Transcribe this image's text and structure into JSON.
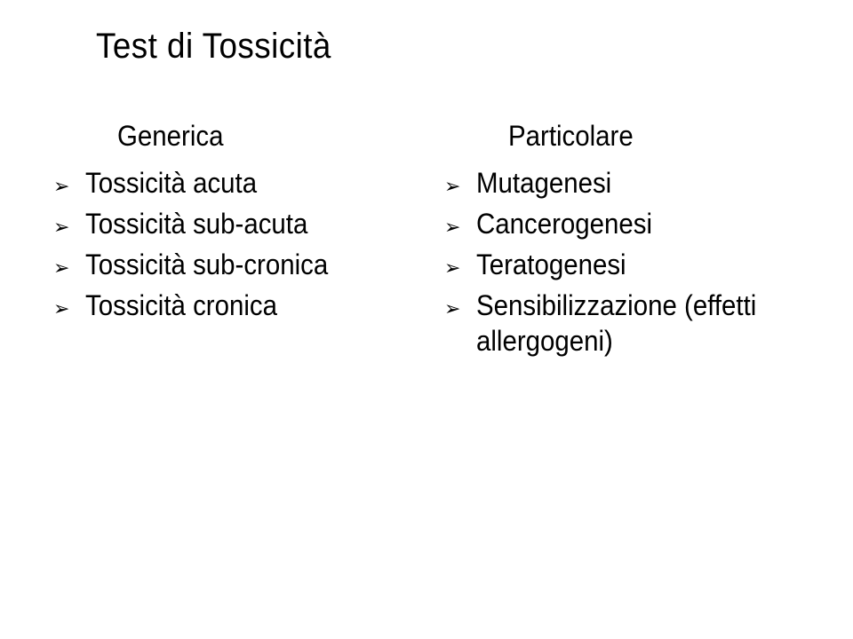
{
  "title": "Test di Tossicità",
  "left": {
    "header": "Generica",
    "items": [
      "Tossicità acuta",
      "Tossicità sub-acuta",
      "Tossicità sub-cronica",
      "Tossicità cronica"
    ]
  },
  "right": {
    "header": "Particolare",
    "items": [
      "Mutagenesi",
      "Cancerogenesi",
      "Teratogenesi",
      "Sensibilizzazione (effetti allergogeni)"
    ]
  },
  "bullet_glyph": "➢",
  "colors": {
    "background": "#ffffff",
    "text": "#000000"
  },
  "fonts": {
    "title_size_pt": 40,
    "body_size_pt": 32
  }
}
